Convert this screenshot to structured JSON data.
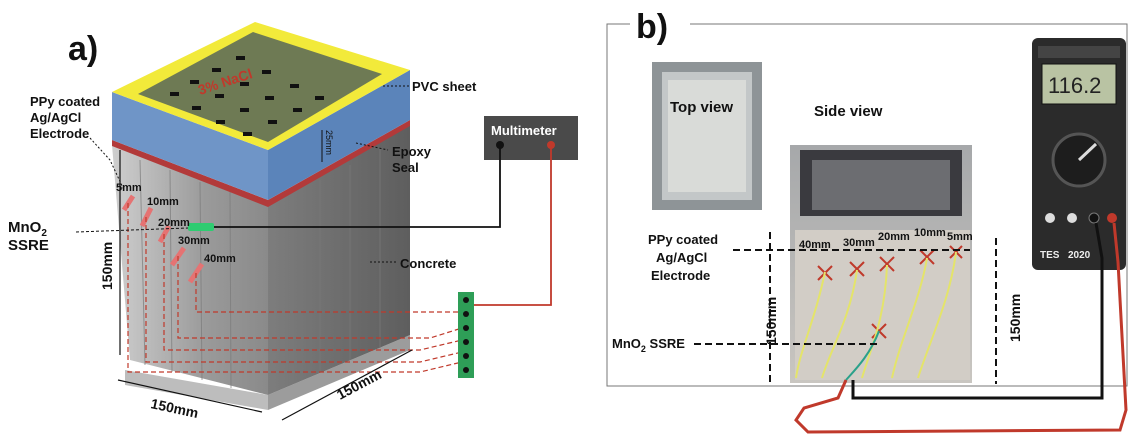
{
  "panel_a": {
    "label": "a)",
    "pvc_sheet": "PVC sheet",
    "ppy_electrode": [
      "PPy coated",
      "Ag/AgCl",
      "Electrode"
    ],
    "nacl": "3% NaCl",
    "depth_25": "25mm",
    "epoxy_seal": [
      "Epoxy",
      "Seal"
    ],
    "multimeter": "Multimeter",
    "mno2": [
      "MnO",
      "2",
      "SSRE"
    ],
    "depths": [
      "5mm",
      "10mm",
      "20mm",
      "30mm",
      "40mm"
    ],
    "concrete": "Concrete",
    "height": "150mm",
    "width": "150mm",
    "depth": "150mm"
  },
  "panel_b": {
    "label": "b)",
    "top_view": "Top view",
    "side_view": "Side view",
    "meter_reading": "116.2",
    "meter_brand": "TES",
    "meter_model": "2020",
    "ppy_electrode": [
      "PPy coated",
      "Ag/AgCl",
      "Electrode"
    ],
    "mno2": [
      "MnO",
      "2",
      " SSRE"
    ],
    "depths": [
      "40mm",
      "30mm",
      "20mm",
      "10mm",
      "5mm"
    ],
    "height_left": "150mm",
    "height_right": "150mm"
  }
}
